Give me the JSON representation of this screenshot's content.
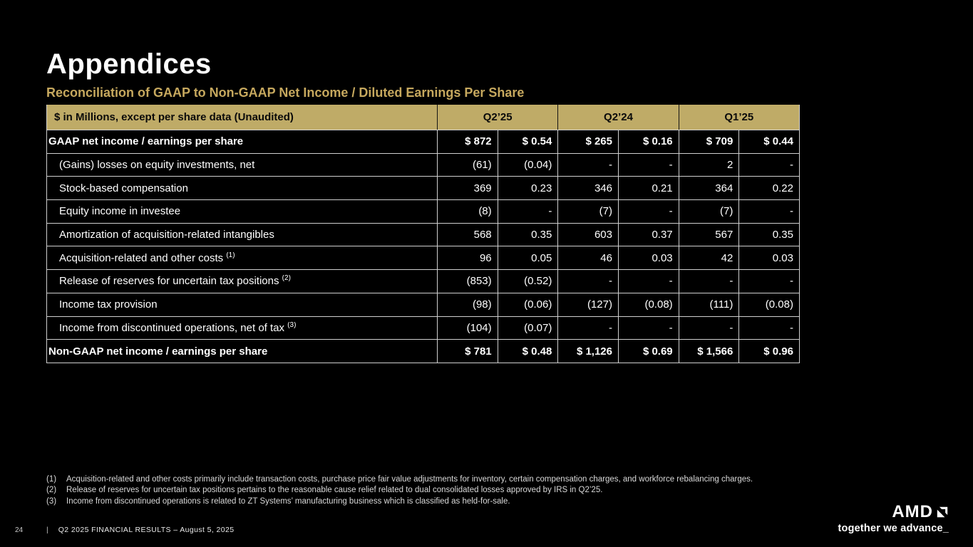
{
  "slide": {
    "title": "Appendices",
    "subtitle": "Reconciliation of GAAP to Non-GAAP Net Income / Diluted Earnings Per Share"
  },
  "table": {
    "header_label": "$ in Millions, except per share data (Unaudited)",
    "quarters": [
      "Q2’25",
      "Q2’24",
      "Q1’25"
    ],
    "rows": [
      {
        "label": "GAAP net income / earnings per share",
        "sup": "",
        "bold": true,
        "values": [
          "$ 872",
          "$ 0.54",
          "$ 265",
          "$ 0.16",
          "$ 709",
          "$ 0.44"
        ]
      },
      {
        "label": "(Gains) losses on equity investments, net",
        "sup": "",
        "bold": false,
        "values": [
          "(61)",
          "(0.04)",
          "-",
          "-",
          "2",
          "-"
        ]
      },
      {
        "label": "Stock-based compensation",
        "sup": "",
        "bold": false,
        "values": [
          "369",
          "0.23",
          "346",
          "0.21",
          "364",
          "0.22"
        ]
      },
      {
        "label": "Equity income in investee",
        "sup": "",
        "bold": false,
        "values": [
          "(8)",
          "-",
          "(7)",
          "-",
          "(7)",
          "-"
        ]
      },
      {
        "label": "Amortization of acquisition-related intangibles",
        "sup": "",
        "bold": false,
        "values": [
          "568",
          "0.35",
          "603",
          "0.37",
          "567",
          "0.35"
        ]
      },
      {
        "label": "Acquisition-related and other costs",
        "sup": "(1)",
        "bold": false,
        "values": [
          "96",
          "0.05",
          "46",
          "0.03",
          "42",
          "0.03"
        ]
      },
      {
        "label": "Release of reserves for uncertain tax positions",
        "sup": "(2)",
        "bold": false,
        "values": [
          "(853)",
          "(0.52)",
          "-",
          "-",
          "-",
          "-"
        ]
      },
      {
        "label": "Income tax provision",
        "sup": "",
        "bold": false,
        "values": [
          "(98)",
          "(0.06)",
          "(127)",
          "(0.08)",
          "(111)",
          "(0.08)"
        ]
      },
      {
        "label": "Income from discontinued operations, net of tax",
        "sup": "(3)",
        "bold": false,
        "values": [
          "(104)",
          "(0.07)",
          "-",
          "-",
          "-",
          "-"
        ]
      },
      {
        "label": "Non-GAAP net income / earnings per share",
        "sup": "",
        "bold": true,
        "values": [
          "$ 781",
          "$ 0.48",
          "$ 1,126",
          "$ 0.69",
          "$ 1,566",
          "$ 0.96"
        ]
      }
    ]
  },
  "footnotes": [
    {
      "num": "(1)",
      "text": "Acquisition-related and other costs primarily include transaction costs, purchase price fair value adjustments for inventory, certain compensation charges, and workforce rebalancing charges."
    },
    {
      "num": "(2)",
      "text": "Release of reserves for uncertain tax positions pertains to the reasonable cause relief related to dual consolidated losses approved by IRS in Q2’25."
    },
    {
      "num": "(3)",
      "text": "Income from discontinued operations is related to ZT Systems’ manufacturing business which is classified as held-for-sale."
    }
  ],
  "footer": {
    "page_number": "24",
    "divider": "|",
    "text": "Q2 2025 FINANCIAL RESULTS – August 5, 2025"
  },
  "logo": {
    "brand": "AMD",
    "tagline": "together we advance_"
  },
  "colors": {
    "background": "#000000",
    "accent_gold": "#c6a85e",
    "table_header_fill": "#bfab67",
    "grid_line": "#cfcfcf",
    "text": "#ffffff"
  }
}
